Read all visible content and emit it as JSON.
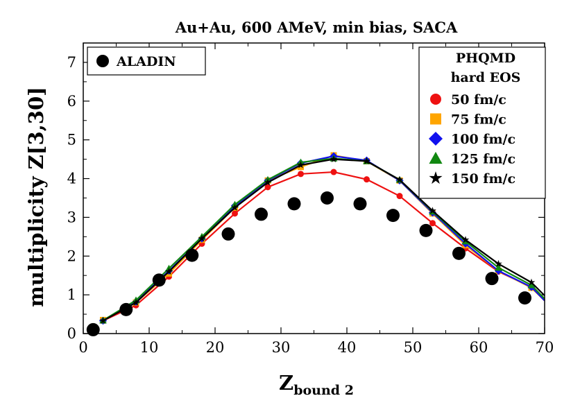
{
  "chart_data": {
    "type": "line",
    "title": "Au+Au, 600 AMeV, min bias, SACA",
    "xlabel": {
      "main": "Z",
      "sub": "bound 2"
    },
    "ylabel": "multiplicity Z[3,30]",
    "xlim": [
      0,
      70
    ],
    "ylim": [
      0,
      7.5
    ],
    "xticks": [
      0,
      10,
      20,
      30,
      40,
      50,
      60,
      70
    ],
    "yticks": [
      0,
      1,
      2,
      3,
      4,
      5,
      6,
      7
    ],
    "legend_placement": "top-right",
    "data_legend": {
      "label": "ALADIN",
      "placement": "top-left"
    },
    "model_legend_header": [
      "PHQMD",
      "hard EOS"
    ],
    "data_series": {
      "name": "ALADIN",
      "marker": "circle",
      "color": "#000000",
      "x": [
        1.5,
        6.5,
        11.5,
        16.5,
        22,
        27,
        32,
        37,
        42,
        47,
        52,
        57,
        62,
        67
      ],
      "y": [
        0.1,
        0.62,
        1.38,
        2.02,
        2.57,
        3.08,
        3.35,
        3.5,
        3.35,
        3.05,
        2.66,
        2.07,
        1.42,
        0.92
      ]
    },
    "series": [
      {
        "name": "50 fm/c",
        "marker": "circle",
        "color": "#ee1111",
        "x": [
          3,
          8,
          13,
          18,
          23,
          28,
          33,
          38,
          43,
          48,
          53,
          58,
          63,
          68,
          70
        ],
        "y": [
          0.33,
          0.73,
          1.47,
          2.32,
          3.1,
          3.78,
          4.12,
          4.17,
          3.98,
          3.55,
          2.85,
          2.2,
          1.6,
          1.2,
          0.85
        ]
      },
      {
        "name": "75 fm/c",
        "marker": "square",
        "color": "#ffa500",
        "x": [
          3,
          8,
          13,
          18,
          23,
          28,
          33,
          38,
          43,
          48,
          53,
          58,
          63,
          68,
          70
        ],
        "y": [
          0.35,
          0.8,
          1.55,
          2.42,
          3.25,
          3.95,
          4.3,
          4.6,
          4.45,
          3.95,
          3.1,
          2.28,
          1.62,
          1.18,
          0.85
        ]
      },
      {
        "name": "100 fm/c",
        "marker": "diamond",
        "color": "#1111ee",
        "x": [
          3,
          8,
          13,
          18,
          23,
          28,
          33,
          38,
          43,
          48,
          53,
          58,
          63,
          68,
          70
        ],
        "y": [
          0.33,
          0.82,
          1.62,
          2.45,
          3.3,
          3.95,
          4.4,
          4.58,
          4.47,
          3.95,
          3.12,
          2.32,
          1.62,
          1.2,
          0.85
        ]
      },
      {
        "name": "125 fm/c",
        "marker": "triangle",
        "color": "#118811",
        "x": [
          3,
          8,
          13,
          18,
          23,
          28,
          33,
          38,
          43,
          48,
          53,
          58,
          63,
          68,
          70
        ],
        "y": [
          0.34,
          0.86,
          1.68,
          2.5,
          3.33,
          3.97,
          4.42,
          4.52,
          4.45,
          3.97,
          3.15,
          2.38,
          1.7,
          1.25,
          0.9
        ]
      },
      {
        "name": "150 fm/c",
        "marker": "star",
        "color": "#000000",
        "x": [
          3,
          8,
          13,
          18,
          23,
          28,
          33,
          38,
          43,
          48,
          53,
          58,
          63,
          68,
          70
        ],
        "y": [
          0.33,
          0.8,
          1.6,
          2.45,
          3.25,
          3.9,
          4.35,
          4.5,
          4.45,
          3.97,
          3.17,
          2.42,
          1.8,
          1.32,
          0.98
        ]
      }
    ]
  }
}
